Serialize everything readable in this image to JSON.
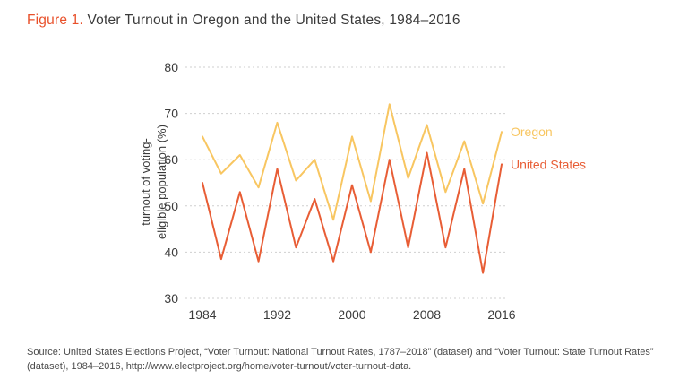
{
  "title": {
    "prefix": "Figure 1.",
    "rest": "Voter Turnout in Oregon and the United States, 1984–2016"
  },
  "chart_data": {
    "type": "line",
    "x": [
      1984,
      1986,
      1988,
      1990,
      1992,
      1994,
      1996,
      1998,
      2000,
      2002,
      2004,
      2006,
      2008,
      2010,
      2012,
      2014,
      2016
    ],
    "series": [
      {
        "name": "Oregon",
        "color": "#f8c661",
        "values": [
          65,
          57,
          61,
          54,
          68,
          55.5,
          60,
          47,
          65,
          51,
          72,
          56,
          67.5,
          53,
          64,
          50.5,
          66
        ]
      },
      {
        "name": "United States",
        "color": "#e85d35",
        "values": [
          55,
          38.5,
          53,
          38,
          58,
          41,
          51.5,
          38,
          54.5,
          40,
          60,
          41,
          61.5,
          41,
          58,
          35.5,
          59
        ]
      }
    ],
    "ylabel_lines": [
      "turnout of voting-",
      "eligible population (%)"
    ],
    "ylim": [
      30,
      80
    ],
    "yticks": [
      80,
      70,
      60,
      50,
      40,
      30
    ],
    "xticks": [
      1984,
      1992,
      2000,
      2008,
      2016
    ],
    "grid": "horizontal dashed",
    "legend_position": "right of line ends",
    "colors": {
      "grid": "#cfcfcf",
      "tick_text": "#3b3b3b"
    }
  },
  "source": "Source: United States Elections Project, “Voter Turnout: National Turnout Rates, 1787–2018” (dataset) and “Voter Turnout: State Turnout Rates” (dataset), 1984–2016, http://www.electproject.org/home/voter-turnout/voter-turnout-data."
}
